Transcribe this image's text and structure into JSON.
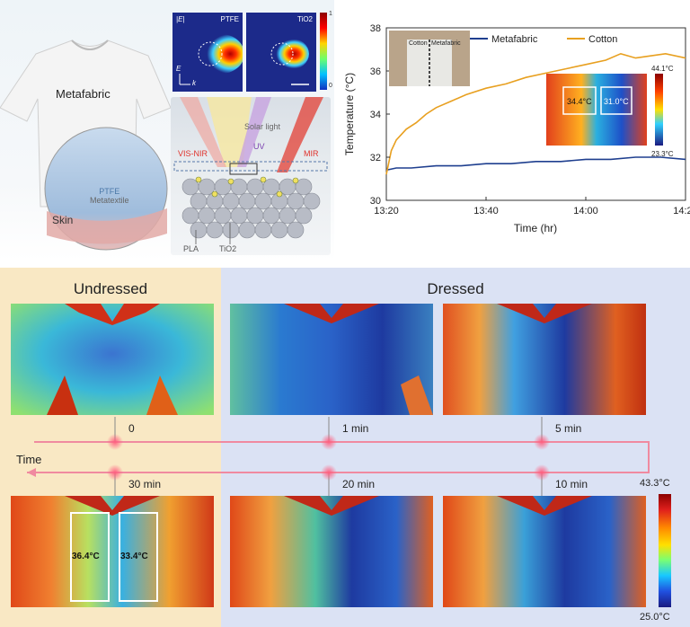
{
  "schematic": {
    "metafabric_label": "Metafabric",
    "ptfe_label": "PTFE",
    "metatextile_label": "Metatextile",
    "skin_label": "Skin",
    "field_symbol": "|E|",
    "field_panels": [
      "PTFE",
      "TiO2"
    ],
    "axis_e": "E",
    "axis_k": "k",
    "colorbar_max": "1",
    "colorbar_min": "0",
    "solar_label": "Solar light",
    "visnir_label": "VIS-NIR",
    "uv_label": "UV",
    "mir_label": "MIR",
    "pla_label": "PLA",
    "tio2_label": "TiO2",
    "colors": {
      "visnir": "#e0322c",
      "uv": "#7a3fb0",
      "mir": "#e0322c",
      "solar": "#f2c94c"
    }
  },
  "chart_data": {
    "type": "line",
    "xlabel": "Time (hr)",
    "ylabel": "Temperature (°C)",
    "x_ticks": [
      "13:20",
      "13:40",
      "14:00",
      "14:20"
    ],
    "y_ticks": [
      30,
      32,
      34,
      36,
      38
    ],
    "xlim_minutes": [
      0,
      60
    ],
    "ylim": [
      30,
      38
    ],
    "legend_position": "top-right",
    "series": [
      {
        "name": "Metafabric",
        "color": "#1f3f8f",
        "x": [
          0,
          2,
          5,
          10,
          15,
          20,
          25,
          30,
          35,
          40,
          45,
          50,
          55,
          60
        ],
        "y": [
          31.4,
          31.5,
          31.5,
          31.6,
          31.6,
          31.7,
          31.7,
          31.8,
          31.8,
          31.9,
          31.9,
          32.0,
          32.0,
          31.9
        ]
      },
      {
        "name": "Cotton",
        "color": "#e8a020",
        "x": [
          0,
          1,
          2,
          4,
          6,
          8,
          10,
          13,
          16,
          20,
          24,
          28,
          32,
          36,
          40,
          44,
          47,
          50,
          53,
          56,
          60
        ],
        "y": [
          31.2,
          32.3,
          32.8,
          33.3,
          33.6,
          34.0,
          34.3,
          34.6,
          34.9,
          35.2,
          35.4,
          35.7,
          35.9,
          36.1,
          36.3,
          36.5,
          36.8,
          36.6,
          36.7,
          36.8,
          36.6
        ]
      }
    ],
    "inset": {
      "photo_left": "Cotton",
      "photo_right": "Metafabric",
      "thermal_max": "44.1°C",
      "thermal_min": "23.3°C",
      "roi_left": "34.4°C",
      "roi_right": "31.0°C"
    }
  },
  "thermal": {
    "undressed_label": "Undressed",
    "dressed_label": "Dressed",
    "time_label": "Time",
    "times": {
      "t0": "0",
      "t1": "1 min",
      "t5": "5 min",
      "t10": "10 min",
      "t20": "20 min",
      "t30": "30 min"
    },
    "roi_left": "36.4°C",
    "roi_right": "33.4°C",
    "colorbar_max": "43.3°C",
    "colorbar_min": "25.0°C"
  }
}
